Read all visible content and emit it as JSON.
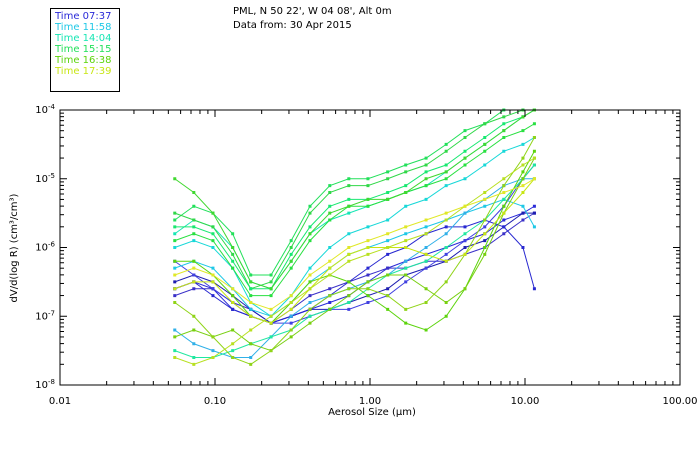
{
  "header": {
    "title": "PML, N 50 22', W 04 08', Alt 0m",
    "subtitle": "Data from: 30 Apr 2015"
  },
  "legend": [
    {
      "label": "Time 07:37",
      "color": "#2a2ad8"
    },
    {
      "label": "Time 11:58",
      "color": "#1ec8e6"
    },
    {
      "label": "Time 14:04",
      "color": "#16e6b4"
    },
    {
      "label": "Time 15:15",
      "color": "#22e05a"
    },
    {
      "label": "Time 16:38",
      "color": "#5cd40c"
    },
    {
      "label": "Time 17:39",
      "color": "#c8e614"
    }
  ],
  "chart_data": {
    "type": "line",
    "title": "PML, N 50 22', W 04 08', Alt 0m",
    "xlabel": "Aerosol Size (µm)",
    "ylabel": "dV/d(log R) (cm³/cm³)",
    "xscale": "log",
    "yscale": "log",
    "xlim": [
      0.01,
      100
    ],
    "ylim_log10": [
      -8,
      -4
    ],
    "x_tick_labels": [
      "0.01",
      "0.10",
      "1.00",
      "10.00",
      "100.00"
    ],
    "y_tick_labels": [
      {
        "mantissa": "10",
        "exp": "-8"
      },
      {
        "mantissa": "10",
        "exp": "-7"
      },
      {
        "mantissa": "10",
        "exp": "-6"
      },
      {
        "mantissa": "10",
        "exp": "-5"
      },
      {
        "mantissa": "10",
        "exp": "-4"
      }
    ],
    "x": [
      0.055,
      0.073,
      0.097,
      0.13,
      0.17,
      0.23,
      0.31,
      0.41,
      0.55,
      0.73,
      0.97,
      1.3,
      1.7,
      2.3,
      3.1,
      4.1,
      5.5,
      7.3,
      9.7,
      11.5
    ],
    "series": [
      {
        "name": "Time 07:37",
        "color": "#2a2ad8",
        "log10_values": [
          -6.6,
          -6.5,
          -6.6,
          -6.9,
          -7.0,
          -7.1,
          -7.0,
          -6.9,
          -6.8,
          -6.7,
          -6.5,
          -6.3,
          -6.2,
          -6.1,
          -6.0,
          -5.9,
          -5.8,
          -5.6,
          -5.5,
          -5.4
        ]
      },
      {
        "name": "Time 07:37",
        "color": "#3a30c8",
        "log10_values": [
          -6.7,
          -6.6,
          -6.6,
          -6.8,
          -6.9,
          -7.1,
          -6.9,
          -6.7,
          -6.6,
          -6.5,
          -6.4,
          -6.3,
          -6.3,
          -6.2,
          -6.2,
          -6.1,
          -6.0,
          -5.8,
          -5.6,
          -5.5
        ]
      },
      {
        "name": "Time 07:37",
        "color": "#1e1eb0",
        "log10_values": [
          -6.5,
          -6.4,
          -6.5,
          -6.7,
          -6.9,
          -7.1,
          -7.0,
          -6.9,
          -6.9,
          -6.8,
          -6.7,
          -6.6,
          -6.4,
          -6.3,
          -6.2,
          -6.0,
          -5.9,
          -5.7,
          -5.5,
          -5.5
        ]
      },
      {
        "name": "Time 07:37",
        "color": "#4040e0",
        "log10_values": [
          -6.2,
          -6.4,
          -6.6,
          -6.8,
          -7.0,
          -7.1,
          -7.1,
          -7.0,
          -6.9,
          -6.9,
          -6.8,
          -6.7,
          -6.5,
          -6.3,
          -6.1,
          -5.9,
          -5.7,
          -5.4,
          -5.0,
          -4.8
        ]
      },
      {
        "name": "Time 07:37",
        "color": "#2828d0",
        "log10_values": [
          -6.6,
          -6.5,
          -6.7,
          -6.9,
          -7.0,
          -7.1,
          -7.0,
          -6.9,
          -6.7,
          -6.5,
          -6.3,
          -6.1,
          -6.0,
          -5.8,
          -5.7,
          -5.7,
          -5.6,
          -5.7,
          -6.0,
          -6.6
        ]
      },
      {
        "name": "Time 11:58",
        "color": "#1ec8e6",
        "log10_values": [
          -6.3,
          -6.2,
          -6.3,
          -6.6,
          -6.9,
          -7.0,
          -6.8,
          -6.5,
          -6.3,
          -6.1,
          -6.0,
          -5.9,
          -5.8,
          -5.7,
          -5.6,
          -5.5,
          -5.4,
          -5.3,
          -5.4,
          -5.7
        ]
      },
      {
        "name": "Time 11:58",
        "color": "#30b0e8",
        "log10_values": [
          -7.2,
          -7.4,
          -7.5,
          -7.6,
          -7.6,
          -7.3,
          -7.0,
          -6.8,
          -6.7,
          -6.6,
          -6.5,
          -6.4,
          -6.2,
          -6.0,
          -5.8,
          -5.5,
          -5.3,
          -5.1,
          -5.0,
          -5.0
        ]
      },
      {
        "name": "Time 11:58",
        "color": "#18d8d8",
        "log10_values": [
          -6.0,
          -5.9,
          -6.0,
          -6.3,
          -6.8,
          -7.0,
          -6.7,
          -6.3,
          -6.0,
          -5.8,
          -5.7,
          -5.6,
          -5.4,
          -5.3,
          -5.1,
          -5.0,
          -4.8,
          -4.6,
          -4.5,
          -4.4
        ]
      },
      {
        "name": "Time 14:04",
        "color": "#16e6b4",
        "log10_values": [
          -5.8,
          -5.6,
          -5.7,
          -6.0,
          -6.5,
          -6.6,
          -6.2,
          -5.8,
          -5.6,
          -5.5,
          -5.4,
          -5.3,
          -5.2,
          -5.1,
          -4.9,
          -4.7,
          -4.5,
          -4.3,
          -4.1,
          -4.0
        ]
      },
      {
        "name": "Time 14:04",
        "color": "#20e8a0",
        "log10_values": [
          -7.5,
          -7.6,
          -7.6,
          -7.5,
          -7.4,
          -7.3,
          -7.2,
          -7.0,
          -6.9,
          -6.8,
          -6.6,
          -6.4,
          -6.3,
          -6.2,
          -6.0,
          -5.8,
          -5.6,
          -5.3,
          -5.0,
          -4.8
        ]
      },
      {
        "name": "Time 15:15",
        "color": "#22e05a",
        "log10_values": [
          -5.6,
          -5.4,
          -5.5,
          -5.8,
          -6.4,
          -6.4,
          -5.9,
          -5.4,
          -5.1,
          -5.0,
          -5.0,
          -4.9,
          -4.8,
          -4.7,
          -4.5,
          -4.3,
          -4.2,
          -4.0,
          -4.0,
          -4.0
        ]
      },
      {
        "name": "Time 15:15",
        "color": "#30d848",
        "log10_values": [
          -5.5,
          -5.6,
          -5.7,
          -6.1,
          -6.6,
          -6.5,
          -6.0,
          -5.5,
          -5.2,
          -5.1,
          -5.1,
          -5.0,
          -4.9,
          -4.8,
          -4.6,
          -4.4,
          -4.2,
          -4.1,
          -4.0,
          -4.0
        ]
      },
      {
        "name": "Time 15:15",
        "color": "#18e870",
        "log10_values": [
          -5.7,
          -5.7,
          -5.8,
          -6.2,
          -6.6,
          -6.6,
          -6.1,
          -5.7,
          -5.4,
          -5.3,
          -5.3,
          -5.2,
          -5.1,
          -4.9,
          -4.8,
          -4.6,
          -4.4,
          -4.2,
          -4.1,
          -4.0
        ]
      },
      {
        "name": "Time 15:15",
        "color": "#28e040",
        "log10_values": [
          -5.9,
          -5.8,
          -5.9,
          -6.3,
          -6.7,
          -6.7,
          -6.3,
          -5.9,
          -5.6,
          -5.4,
          -5.4,
          -5.3,
          -5.2,
          -5.1,
          -5.0,
          -4.8,
          -4.6,
          -4.4,
          -4.3,
          -4.2
        ]
      },
      {
        "name": "Time 15:15",
        "color": "#40d830",
        "log10_values": [
          -5.0,
          -5.2,
          -5.5,
          -6.0,
          -6.5,
          -6.6,
          -6.2,
          -5.8,
          -5.5,
          -5.4,
          -5.3,
          -5.3,
          -5.2,
          -5.0,
          -4.9,
          -4.7,
          -4.5,
          -4.3,
          -4.1,
          -4.0
        ]
      },
      {
        "name": "Time 16:38",
        "color": "#5cd40c",
        "log10_values": [
          -6.2,
          -6.2,
          -6.4,
          -6.7,
          -7.0,
          -7.1,
          -6.8,
          -6.5,
          -6.4,
          -6.5,
          -6.7,
          -6.9,
          -7.1,
          -7.2,
          -7.0,
          -6.6,
          -6.0,
          -5.4,
          -4.9,
          -4.6
        ]
      },
      {
        "name": "Time 16:38",
        "color": "#78d010",
        "log10_values": [
          -7.3,
          -7.2,
          -7.3,
          -7.2,
          -7.4,
          -7.5,
          -7.3,
          -7.1,
          -6.9,
          -6.7,
          -6.5,
          -6.4,
          -6.4,
          -6.6,
          -6.8,
          -6.6,
          -6.1,
          -5.5,
          -5.0,
          -4.7
        ]
      },
      {
        "name": "Time 16:38",
        "color": "#90d418",
        "log10_values": [
          -6.8,
          -7.0,
          -7.3,
          -7.6,
          -7.7,
          -7.5,
          -7.2,
          -6.9,
          -6.7,
          -6.6,
          -6.6,
          -6.7,
          -6.9,
          -6.8,
          -6.5,
          -6.1,
          -5.6,
          -5.1,
          -4.7,
          -4.4
        ]
      },
      {
        "name": "Time 17:39",
        "color": "#c8e614",
        "log10_values": [
          -6.6,
          -6.5,
          -6.5,
          -6.8,
          -7.0,
          -7.1,
          -6.9,
          -6.6,
          -6.3,
          -6.1,
          -6.0,
          -6.0,
          -6.0,
          -6.1,
          -6.2,
          -6.1,
          -5.8,
          -5.5,
          -5.2,
          -5.0
        ]
      },
      {
        "name": "Time 17:39",
        "color": "#b8e020",
        "log10_values": [
          -7.6,
          -7.7,
          -7.6,
          -7.4,
          -7.2,
          -7.0,
          -6.8,
          -6.6,
          -6.4,
          -6.2,
          -6.1,
          -6.0,
          -5.9,
          -5.8,
          -5.6,
          -5.4,
          -5.2,
          -5.0,
          -4.8,
          -4.7
        ]
      },
      {
        "name": "Time 17:39",
        "color": "#e0e828",
        "log10_values": [
          -6.4,
          -6.3,
          -6.4,
          -6.6,
          -6.8,
          -6.9,
          -6.7,
          -6.4,
          -6.2,
          -6.0,
          -5.9,
          -5.8,
          -5.7,
          -5.6,
          -5.5,
          -5.4,
          -5.3,
          -5.2,
          -5.1,
          -5.0
        ]
      }
    ]
  }
}
